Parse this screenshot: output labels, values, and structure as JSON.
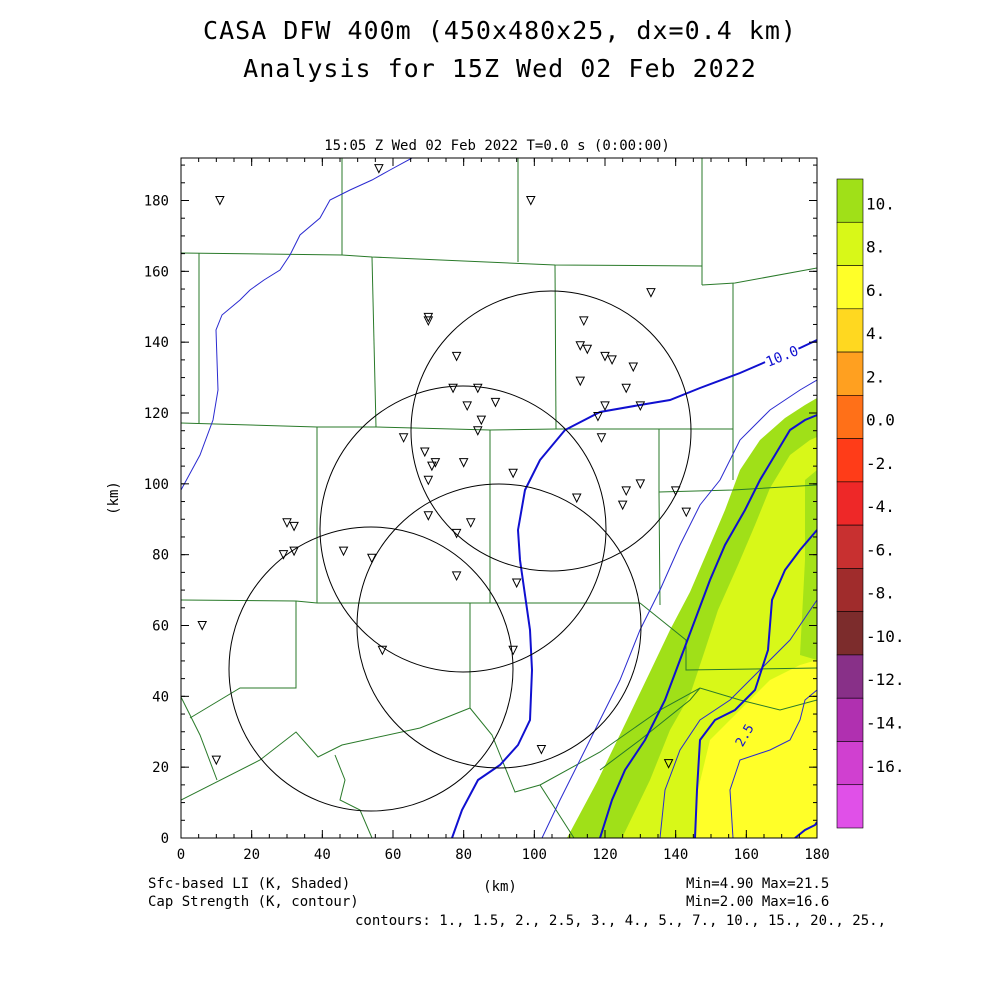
{
  "title": {
    "line1": "CASA DFW 400m (450x480x25, dx=0.4 km)",
    "line2": "Analysis for 15Z Wed 02 Feb 2022"
  },
  "plot": {
    "header": "15:05 Z Wed 02 Feb 2022   T=0.0 s (0:00:00)",
    "x_axis": {
      "label": "(km)",
      "min": 0,
      "max": 180,
      "ticks": [
        "0",
        "20",
        "40",
        "60",
        "80",
        "100",
        "120",
        "140",
        "160",
        "180"
      ]
    },
    "y_axis": {
      "label": "(km)",
      "min": 0,
      "max": 192,
      "ticks": [
        "0",
        "20",
        "40",
        "60",
        "80",
        "100",
        "120",
        "140",
        "160",
        "180"
      ]
    },
    "contour_labels": [
      "10.0",
      "2.5"
    ]
  },
  "colorbar": {
    "labels": [
      "10.",
      "8.",
      "6.",
      "4.",
      "2.",
      "0.0",
      "-2.",
      "-4.",
      "-6.",
      "-8.",
      "-10.",
      "-12.",
      "-14.",
      "-16."
    ],
    "colors": [
      "#a0e018",
      "#d8f818",
      "#ffff28",
      "#ffd820",
      "#ffa020",
      "#ff7018",
      "#ff3c18",
      "#ee2828",
      "#c83030",
      "#a02c2c",
      "#7c2c2c",
      "#883088",
      "#b030b0",
      "#d040d0",
      "#e050e8"
    ]
  },
  "footer": {
    "left_line1": "Sfc-based LI (K, Shaded)",
    "left_line2": "Cap Strength (K, contour)",
    "center": "(km)",
    "right_line1": "Min=4.90 Max=21.5",
    "right_line2": "Min=2.00 Max=16.6",
    "contours": "contours: 1., 1.5, 2., 2.5, 3., 4., 5., 7., 10., 15., 20., 25.,"
  },
  "colors": {
    "county_lines": "#2a7a2a",
    "contour": "#1a1ad0",
    "radar_rings": "#000000",
    "shade_green": "#a0e018",
    "shade_lime": "#d8f818",
    "shade_yellow": "#ffff28"
  },
  "stations": [
    [
      11,
      180
    ],
    [
      56,
      189
    ],
    [
      99,
      180
    ],
    [
      133,
      154
    ],
    [
      70,
      147
    ],
    [
      70,
      146
    ],
    [
      114,
      146
    ],
    [
      78,
      136
    ],
    [
      113,
      139
    ],
    [
      115,
      138
    ],
    [
      120,
      136
    ],
    [
      122,
      135
    ],
    [
      128,
      133
    ],
    [
      113,
      129
    ],
    [
      77,
      127
    ],
    [
      84,
      127
    ],
    [
      126,
      127
    ],
    [
      89,
      123
    ],
    [
      81,
      122
    ],
    [
      120,
      122
    ],
    [
      130,
      122
    ],
    [
      85,
      118
    ],
    [
      118,
      119
    ],
    [
      84,
      115
    ],
    [
      119,
      113
    ],
    [
      63,
      113
    ],
    [
      69,
      109
    ],
    [
      72,
      106
    ],
    [
      71,
      105
    ],
    [
      80,
      106
    ],
    [
      70,
      101
    ],
    [
      94,
      103
    ],
    [
      130,
      100
    ],
    [
      140,
      98
    ],
    [
      112,
      96
    ],
    [
      126,
      98
    ],
    [
      125,
      94
    ],
    [
      143,
      92
    ],
    [
      70,
      91
    ],
    [
      82,
      89
    ],
    [
      30,
      89
    ],
    [
      32,
      88
    ],
    [
      29,
      80
    ],
    [
      32,
      81
    ],
    [
      46,
      81
    ],
    [
      54,
      79
    ],
    [
      78,
      86
    ],
    [
      78,
      74
    ],
    [
      95,
      72
    ],
    [
      6,
      60
    ],
    [
      57,
      53
    ],
    [
      94,
      53
    ],
    [
      102,
      25
    ],
    [
      138,
      21
    ],
    [
      10,
      22
    ]
  ]
}
